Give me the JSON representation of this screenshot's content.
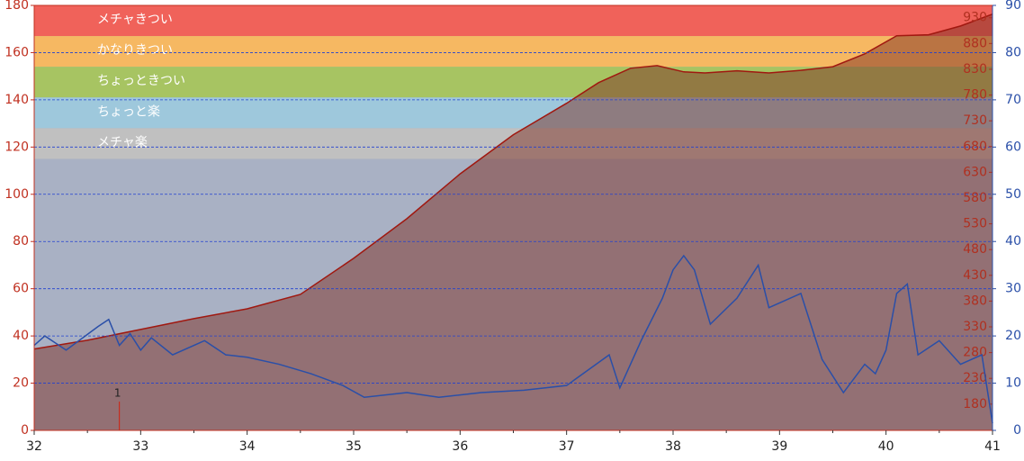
{
  "chart_data": {
    "type": "zone-area-line",
    "xlim": [
      32,
      41
    ],
    "xticks": [
      32,
      33,
      34,
      35,
      36,
      37,
      38,
      39,
      40,
      41
    ],
    "ylim": [
      0,
      180
    ],
    "yticks": [
      0,
      20,
      40,
      60,
      80,
      100,
      120,
      140,
      160,
      180
    ],
    "grid": true,
    "background_color": "#a9b1c4",
    "zones": [
      {
        "name": "メチャきつい",
        "min": 167,
        "max": 180,
        "color": "#f0625a"
      },
      {
        "name": "かなりきつい",
        "min": 154,
        "max": 167,
        "color": "#f6b862"
      },
      {
        "name": "ちょっときつい",
        "min": 141,
        "max": 154,
        "color": "#a7c462"
      },
      {
        "name": "ちょっと楽",
        "min": 128,
        "max": 141,
        "color": "#9ec8dc"
      },
      {
        "name": "メチャ楽",
        "min": 115,
        "max": 128,
        "color": "#c0c0c0"
      }
    ],
    "elevation_axis": {
      "lim": [
        129,
        954
      ],
      "ticks": [
        180,
        230,
        280,
        330,
        380,
        430,
        480,
        530,
        580,
        630,
        680,
        730,
        780,
        830,
        880,
        930
      ],
      "color": "#b03020"
    },
    "speed_axis": {
      "lim": [
        0,
        90
      ],
      "ticks": [
        0,
        10,
        20,
        30,
        40,
        50,
        60,
        70,
        80,
        90
      ],
      "color": "#2a4fa8"
    },
    "elevation": {
      "color": "#7d2f24",
      "line_color": "#a01810",
      "x": [
        32.0,
        32.5,
        33.0,
        33.5,
        34.0,
        34.5,
        35.0,
        35.5,
        36.0,
        36.5,
        37.0,
        37.3,
        37.6,
        37.85,
        38.1,
        38.3,
        38.6,
        38.9,
        39.2,
        39.5,
        39.8,
        40.1,
        40.4,
        40.7,
        41.0
      ],
      "values": [
        287,
        304,
        325,
        346,
        365,
        393,
        463,
        540,
        627,
        703,
        764,
        804,
        832,
        837,
        825,
        823,
        827,
        823,
        828,
        835,
        860,
        895,
        897,
        914,
        937
      ]
    },
    "speed": {
      "color": "#2a4fa8",
      "x": [
        32.0,
        32.1,
        32.3,
        32.6,
        32.7,
        32.8,
        32.9,
        33.0,
        33.1,
        33.3,
        33.6,
        33.8,
        34.0,
        34.3,
        34.6,
        34.9,
        35.1,
        35.5,
        35.8,
        36.2,
        36.6,
        37.0,
        37.4,
        37.5,
        37.7,
        37.9,
        38.0,
        38.1,
        38.2,
        38.35,
        38.6,
        38.8,
        38.9,
        39.0,
        39.2,
        39.4,
        39.6,
        39.8,
        39.9,
        40.0,
        40.1,
        40.2,
        40.3,
        40.5,
        40.7,
        40.9,
        41.0
      ],
      "values": [
        18,
        20,
        17,
        22,
        23.5,
        18,
        20.5,
        17,
        19.6,
        16,
        19,
        16,
        15.5,
        14,
        12,
        9.5,
        7,
        8,
        7,
        8,
        8.5,
        9.5,
        16,
        9,
        19,
        28,
        34,
        37,
        34,
        22.5,
        28,
        35,
        26,
        27,
        29,
        15,
        8,
        14,
        12,
        17,
        29,
        31,
        16,
        19,
        14,
        16,
        1.5
      ]
    },
    "lap_marker": {
      "label": "1",
      "x": 32.8,
      "color": "#d02010"
    }
  }
}
